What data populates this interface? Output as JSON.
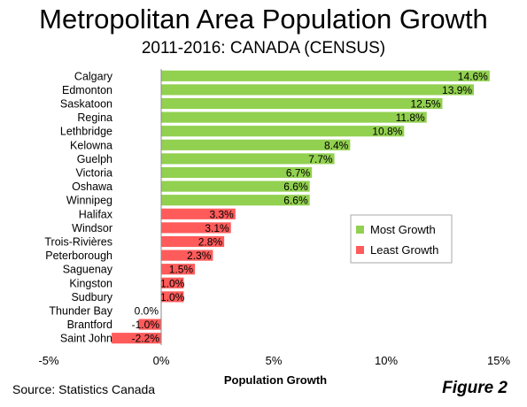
{
  "title": "Metropolitan Area Population Growth",
  "subtitle": "2011-2016: CANADA  (CENSUS)",
  "source": "Source: Statistics Canada",
  "figure_label": "Figure 2",
  "colors": {
    "most": "#92d050",
    "least": "#ff5b5b",
    "axis": "#888888"
  },
  "chart_data": {
    "type": "bar",
    "orientation": "horizontal",
    "xlabel": "Population Growth",
    "xlim": [
      -5,
      15
    ],
    "xticks": [
      -5,
      0,
      5,
      10,
      15
    ],
    "xtick_labels": [
      "-5%",
      "0%",
      "5%",
      "10%",
      "15%"
    ],
    "legend_position": "right",
    "legend": [
      {
        "name": "Most Growth",
        "color": "#92d050"
      },
      {
        "name": "Least Growth",
        "color": "#ff5b5b"
      }
    ],
    "categories": [
      "Calgary",
      "Edmonton",
      "Saskatoon",
      "Regina",
      "Lethbridge",
      "Kelowna",
      "Guelph",
      "Victoria",
      "Oshawa",
      "Winnipeg",
      "Halifax",
      "Windsor",
      "Trois-Rivières",
      "Peterborough",
      "Saguenay",
      "Kingston",
      "Sudbury",
      "Thunder Bay",
      "Brantford",
      "Saint John"
    ],
    "values": [
      14.6,
      13.9,
      12.5,
      11.8,
      10.8,
      8.4,
      7.7,
      6.7,
      6.6,
      6.6,
      3.3,
      3.1,
      2.8,
      2.3,
      1.5,
      1.0,
      1.0,
      0.0,
      -1.0,
      -2.2
    ],
    "data_labels": [
      "14.6%",
      "13.9%",
      "12.5%",
      "11.8%",
      "10.8%",
      "8.4%",
      "7.7%",
      "6.7%",
      "6.6%",
      "6.6%",
      "3.3%",
      "3.1%",
      "2.8%",
      "2.3%",
      "1.5%",
      "1.0%",
      "1.0%",
      "0.0%",
      "-1.0%",
      "-2.2%"
    ],
    "groups": [
      "most",
      "most",
      "most",
      "most",
      "most",
      "most",
      "most",
      "most",
      "most",
      "most",
      "least",
      "least",
      "least",
      "least",
      "least",
      "least",
      "least",
      "least",
      "least",
      "least"
    ]
  }
}
